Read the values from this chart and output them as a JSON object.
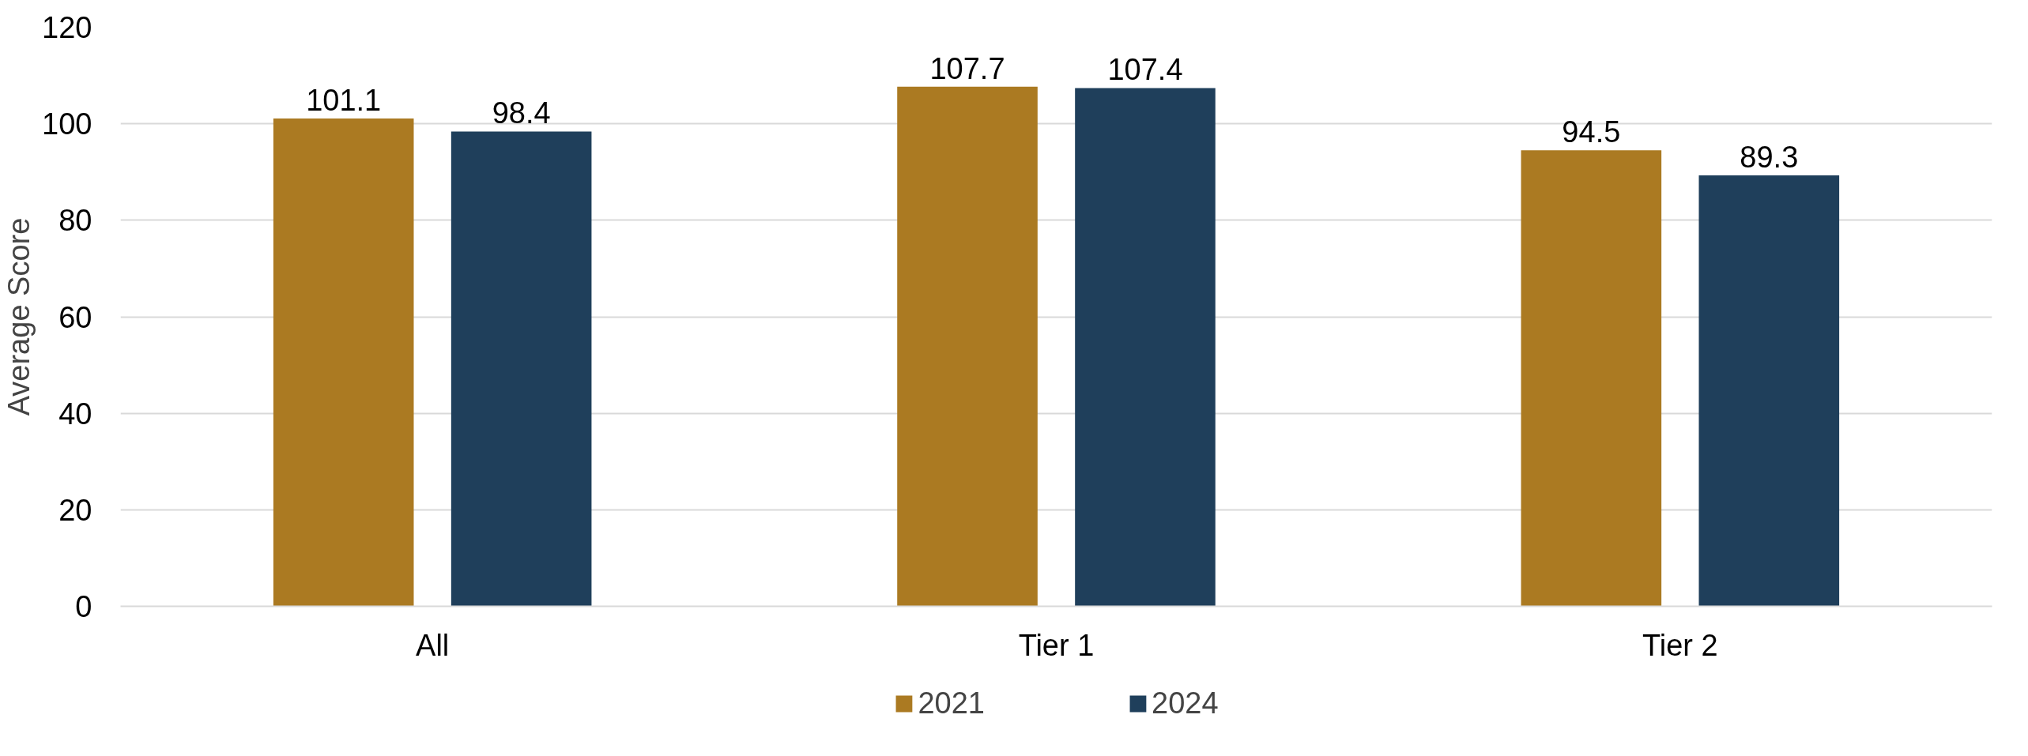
{
  "chart_data": {
    "type": "bar",
    "categories": [
      "All",
      "Tier 1",
      "Tier 2"
    ],
    "series": [
      {
        "name": "2021",
        "color": "#ab7a22",
        "values": [
          101.1,
          107.7,
          94.5
        ]
      },
      {
        "name": "2024",
        "color": "#1f3f5b",
        "values": [
          98.4,
          107.4,
          89.3
        ]
      }
    ],
    "ylabel": "Average Score",
    "ylim": [
      0,
      120
    ],
    "yticks": [
      0,
      20,
      40,
      60,
      80,
      100,
      120
    ],
    "grid": "y",
    "legend": "bottom",
    "data_labels": true
  }
}
